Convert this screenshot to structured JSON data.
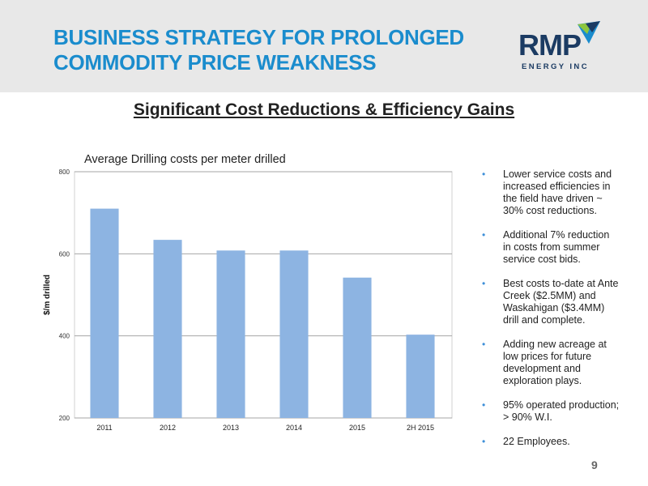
{
  "header": {
    "title_line1": "BUSINESS STRATEGY FOR PROLONGED",
    "title_line2": "COMMODITY PRICE WEAKNESS",
    "logo_main": "RMP",
    "logo_sub": "ENERGY INC",
    "colors": {
      "title": "#1a8ccd",
      "logo_navy": "#1b3b63",
      "logo_green": "#8dc63f",
      "logo_blue": "#1a8ccd"
    }
  },
  "subtitle": "Significant Cost Reductions & Efficiency Gains",
  "chart_data": {
    "type": "bar",
    "title": "Average Drilling costs per meter drilled",
    "ylabel": "$/m drilled",
    "xlabel": "",
    "categories": [
      "2011",
      "2012",
      "2013",
      "2014",
      "2015",
      "2H 2015"
    ],
    "values": [
      710,
      634,
      608,
      608,
      542,
      403
    ],
    "ylim": [
      200,
      800
    ],
    "yticks": [
      "200",
      "400",
      "600",
      "800"
    ],
    "grid": true,
    "bar_color": "#8db4e2"
  },
  "bullets": [
    "Lower service costs and increased efficiencies in the field have driven ~ 30% cost reductions.",
    "Additional 7% reduction in costs from summer service cost bids.",
    "Best costs to-date at Ante Creek ($2.5MM) and Waskahigan ($3.4MM) drill and complete.",
    "Adding new acreage at low prices for future development and exploration plays.",
    "95% operated production; > 90% W.I.",
    "22 Employees."
  ],
  "bullet_symbol": "•",
  "page_number": "9"
}
